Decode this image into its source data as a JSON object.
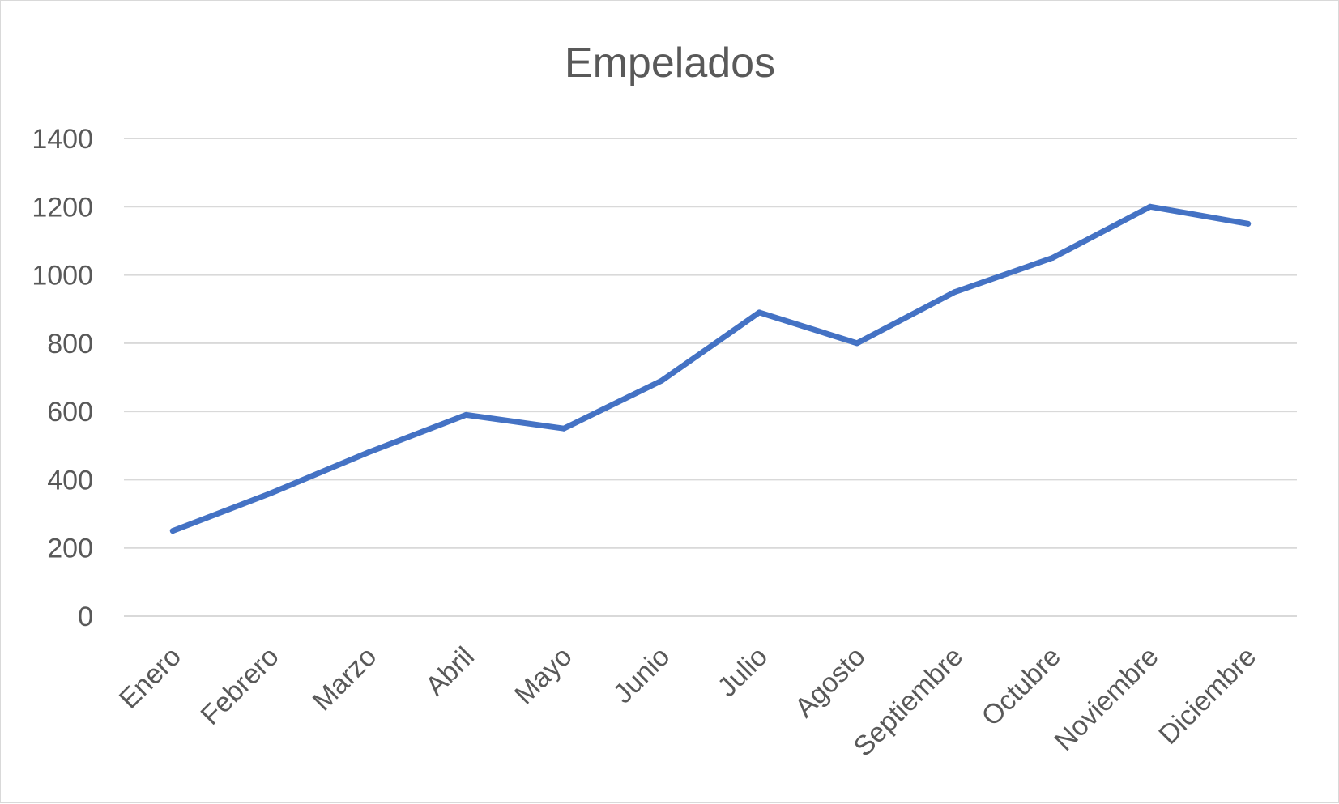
{
  "chart_data": {
    "type": "line",
    "title": "Empelados",
    "xlabel": "",
    "ylabel": "",
    "categories": [
      "Enero",
      "Febrero",
      "Marzo",
      "Abril",
      "Mayo",
      "Junio",
      "Julio",
      "Agosto",
      "Septiembre",
      "Octubre",
      "Noviembre",
      "Diciembre"
    ],
    "series": [
      {
        "values": [
          250,
          360,
          480,
          590,
          550,
          690,
          890,
          800,
          950,
          1050,
          1200,
          1150
        ]
      }
    ],
    "ylim": [
      0,
      1400
    ],
    "yticks": [
      0,
      200,
      400,
      600,
      800,
      1000,
      1200,
      1400
    ],
    "grid": true,
    "legend": "none",
    "colors": {
      "line": "#4472C4",
      "grid": "#d9d9d9",
      "text": "#595959"
    }
  }
}
